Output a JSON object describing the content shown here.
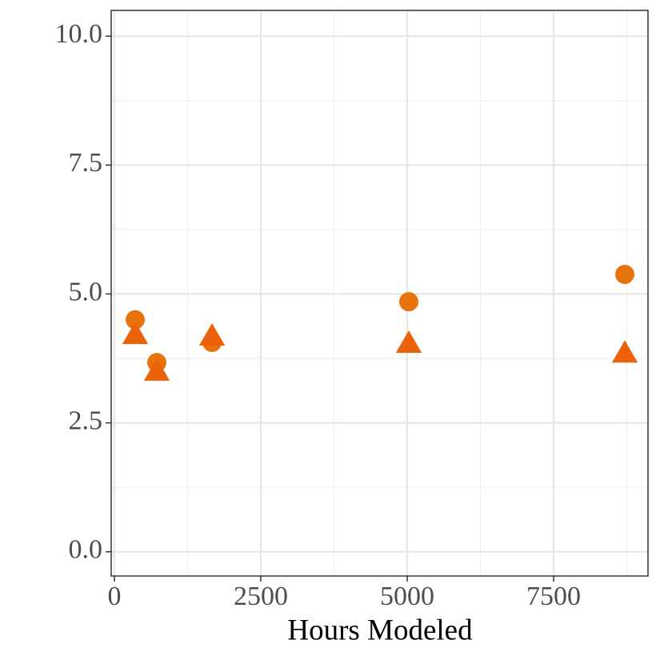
{
  "chart_data": {
    "type": "scatter",
    "x_label": "Hours Modeled",
    "series": [
      {
        "marker": "circle",
        "color": "#e8730c",
        "x": [
          355,
          724,
          1667,
          5027,
          8716
        ],
        "values": [
          4.5,
          3.67,
          4.06,
          4.85,
          5.38
        ]
      },
      {
        "marker": "triangle",
        "color": "#ea6209",
        "x": [
          355,
          724,
          1667,
          5027,
          8716
        ],
        "values": [
          4.2,
          3.49,
          4.17,
          4.03,
          3.84
        ]
      }
    ],
    "xlim": [
      -55,
      9112
    ],
    "ylim": [
      -0.47,
      10.5
    ],
    "xticks": [
      0,
      2500,
      5000,
      7500
    ],
    "yticks": [
      {
        "value": 0,
        "label": "0.0"
      },
      2.5,
      {
        "value": 5,
        "label": "5.0"
      },
      7.5,
      {
        "value": 10,
        "label": "10.0"
      }
    ],
    "xminorticks": [
      1250,
      3750,
      6250,
      8750
    ],
    "yminorticks": [
      1.25,
      3.75,
      6.25,
      8.75
    ],
    "grid": true
  }
}
